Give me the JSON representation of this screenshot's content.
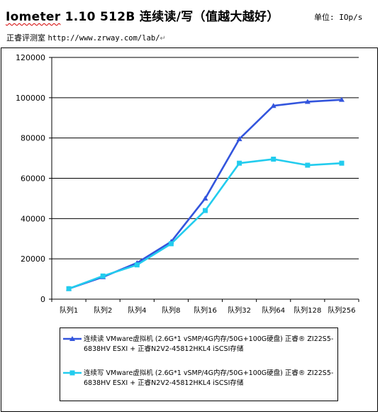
{
  "header": {
    "title_prefix": "Iometer",
    "title_rest": " 1.10 512B 连续读/写（值越大越好）",
    "unit": "单位: IOp/s"
  },
  "source": {
    "label": "正睿评测室 ",
    "url": "http://www.zrway.com/lab/",
    "return_mark": "↵"
  },
  "colors": {
    "read_series": "#3355dd",
    "write_series": "#22ccee",
    "grid": "#000000"
  },
  "chart_data": {
    "type": "line",
    "categories": [
      "队列1",
      "队列2",
      "队列4",
      "队列8",
      "队列16",
      "队列32",
      "队列64",
      "队列128",
      "队列256"
    ],
    "ylim": [
      0,
      120000
    ],
    "y_ticks": [
      "0",
      "20000",
      "40000",
      "60000",
      "80000",
      "100000",
      "120000"
    ],
    "grid": "horizontal",
    "legend_position": "bottom",
    "series": [
      {
        "name": "连续读 VMware虚拟机 (2.6G*1 vSMP/4G内存/50G+100G硬盘) 正睿® ZI22S5-6838HV ESXI + 正睿N2V2-45812HKL4 iSCSI存储",
        "marker": "triangle",
        "values": [
          5200,
          11000,
          18000,
          28500,
          50000,
          79500,
          96000,
          98000,
          99000
        ]
      },
      {
        "name": "连续写 VMware虚拟机 (2.6G*1 vSMP/4G内存/50G+100G硬盘) 正睿® ZI22S5-6838HV ESXI + 正睿N2V2-45812HKL4 iSCSI存储",
        "marker": "square",
        "values": [
          5200,
          11500,
          17000,
          27500,
          44000,
          67500,
          69500,
          66500,
          67500
        ]
      }
    ]
  }
}
